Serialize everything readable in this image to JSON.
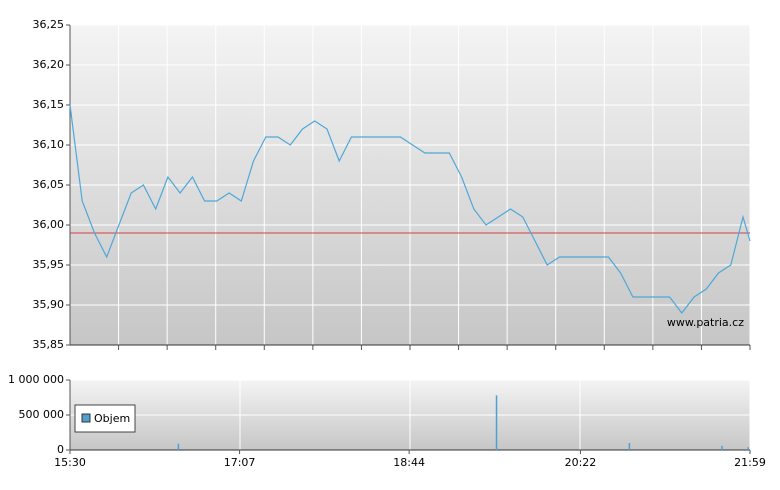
{
  "chart_data": [
    {
      "type": "line",
      "annotation": "www.patria.cz",
      "xlim": [
        "15:30",
        "21:59"
      ],
      "ylim": [
        35.85,
        36.25
      ],
      "yticks": [
        {
          "value": 35.85,
          "label": "35,85"
        },
        {
          "value": 35.9,
          "label": "35,90"
        },
        {
          "value": 35.95,
          "label": "35,95"
        },
        {
          "value": 36.0,
          "label": "36,00"
        },
        {
          "value": 36.05,
          "label": "36,05"
        },
        {
          "value": 36.1,
          "label": "36,10"
        },
        {
          "value": 36.15,
          "label": "36,15"
        },
        {
          "value": 36.2,
          "label": "36,20"
        },
        {
          "value": 36.25,
          "label": "36,25"
        }
      ],
      "grid": true,
      "reference_line": {
        "value": 35.99,
        "color": "#d04040"
      },
      "series": [
        {
          "color": "#4ea8d8",
          "x": [
            "15:30",
            "15:37",
            "15:44",
            "15:51",
            "15:58",
            "16:05",
            "16:12",
            "16:19",
            "16:26",
            "16:33",
            "16:40",
            "16:47",
            "16:54",
            "17:01",
            "17:08",
            "17:15",
            "17:22",
            "17:29",
            "17:36",
            "17:43",
            "17:50",
            "17:57",
            "18:04",
            "18:11",
            "18:18",
            "18:25",
            "18:32",
            "18:39",
            "18:46",
            "18:53",
            "19:00",
            "19:07",
            "19:14",
            "19:21",
            "19:28",
            "19:35",
            "19:42",
            "19:49",
            "19:56",
            "20:03",
            "20:10",
            "20:17",
            "20:24",
            "20:31",
            "20:38",
            "20:45",
            "20:52",
            "20:59",
            "21:06",
            "21:13",
            "21:20",
            "21:27",
            "21:34",
            "21:41",
            "21:48",
            "21:55",
            "21:59"
          ],
          "values": [
            36.15,
            36.03,
            35.99,
            35.96,
            36.0,
            36.04,
            36.05,
            36.02,
            36.06,
            36.04,
            36.06,
            36.03,
            36.03,
            36.04,
            36.03,
            36.08,
            36.11,
            36.11,
            36.1,
            36.12,
            36.13,
            36.12,
            36.08,
            36.11,
            36.11,
            36.11,
            36.11,
            36.11,
            36.1,
            36.09,
            36.09,
            36.09,
            36.06,
            36.02,
            36.0,
            36.01,
            36.02,
            36.01,
            35.98,
            35.95,
            35.96,
            35.96,
            35.96,
            35.96,
            35.96,
            35.94,
            35.91,
            35.91,
            35.91,
            35.91,
            35.89,
            35.91,
            35.92,
            35.94,
            35.95,
            36.01,
            35.98
          ]
        }
      ]
    },
    {
      "type": "bar",
      "xlim": [
        "15:30",
        "21:59"
      ],
      "xticks": [
        "15:30",
        "17:07",
        "18:44",
        "20:22",
        "21:59"
      ],
      "ylim": [
        0,
        1000000
      ],
      "yticks": [
        0,
        {
          "value": 500000,
          "label": "500 000"
        },
        {
          "value": 1000000,
          "label": "1 000 000"
        }
      ],
      "grid": true,
      "series": [
        {
          "name": "Objem",
          "color": "#4ea0cf",
          "x": [
            "16:32",
            "19:34",
            "20:50",
            "21:43",
            "21:58"
          ],
          "values": [
            90000,
            780000,
            100000,
            60000,
            40000
          ]
        }
      ]
    }
  ]
}
